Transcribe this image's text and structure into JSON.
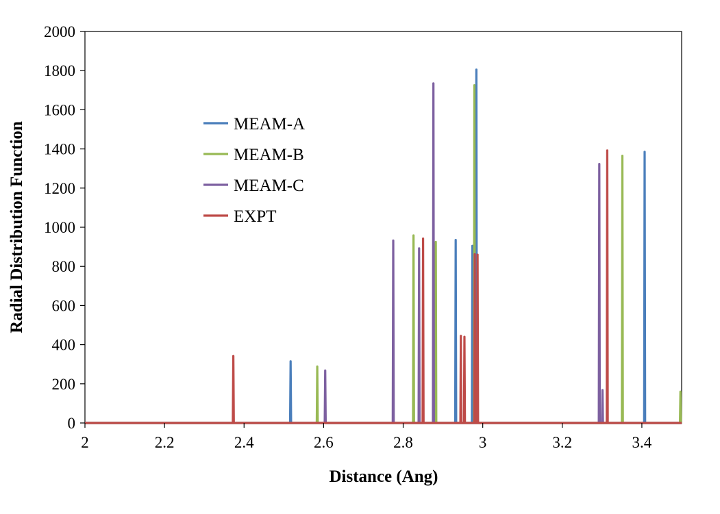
{
  "chart_data": {
    "type": "line",
    "title": "",
    "xlabel": "Distance (Ang)",
    "ylabel": "Radial Distribution Function",
    "xlim": [
      2,
      3.5
    ],
    "ylim": [
      0,
      2000
    ],
    "xticks": [
      "2",
      "2.2",
      "2.4",
      "2.6",
      "2.8",
      "3",
      "3.2",
      "3.4"
    ],
    "xtick_values": [
      2,
      2.2,
      2.4,
      2.6,
      2.8,
      3,
      3.2,
      3.4
    ],
    "yticks": [
      "0",
      "200",
      "400",
      "600",
      "800",
      "1000",
      "1200",
      "1400",
      "1600",
      "1800",
      "2000"
    ],
    "ytick_values": [
      0,
      200,
      400,
      600,
      800,
      1000,
      1200,
      1400,
      1600,
      1800,
      2000
    ],
    "grid": false,
    "legend_position": "upper-left",
    "series": [
      {
        "name": "MEAM-A",
        "color": "#4a7ebb",
        "peaks": [
          {
            "x": 2.517,
            "y": 315
          },
          {
            "x": 2.932,
            "y": 935
          },
          {
            "x": 2.974,
            "y": 905
          },
          {
            "x": 2.984,
            "y": 1805
          },
          {
            "x": 3.407,
            "y": 1385
          }
        ]
      },
      {
        "name": "MEAM-B",
        "color": "#98b954",
        "peaks": [
          {
            "x": 2.584,
            "y": 288
          },
          {
            "x": 2.826,
            "y": 958
          },
          {
            "x": 2.882,
            "y": 925
          },
          {
            "x": 2.979,
            "y": 1725
          },
          {
            "x": 3.351,
            "y": 1365
          },
          {
            "x": 3.497,
            "y": 160
          }
        ]
      },
      {
        "name": "MEAM-C",
        "color": "#7d60a0",
        "peaks": [
          {
            "x": 2.604,
            "y": 268
          },
          {
            "x": 2.775,
            "y": 932
          },
          {
            "x": 2.84,
            "y": 892
          },
          {
            "x": 2.876,
            "y": 1735
          },
          {
            "x": 3.293,
            "y": 1323
          },
          {
            "x": 3.301,
            "y": 168
          }
        ]
      },
      {
        "name": "EXPT",
        "color": "#be4b48",
        "peaks": [
          {
            "x": 2.373,
            "y": 342
          },
          {
            "x": 2.85,
            "y": 942
          },
          {
            "x": 2.945,
            "y": 445
          },
          {
            "x": 2.954,
            "y": 440
          },
          {
            "x": 2.98,
            "y": 862
          },
          {
            "x": 2.987,
            "y": 860
          },
          {
            "x": 3.313,
            "y": 1392
          }
        ]
      }
    ]
  }
}
